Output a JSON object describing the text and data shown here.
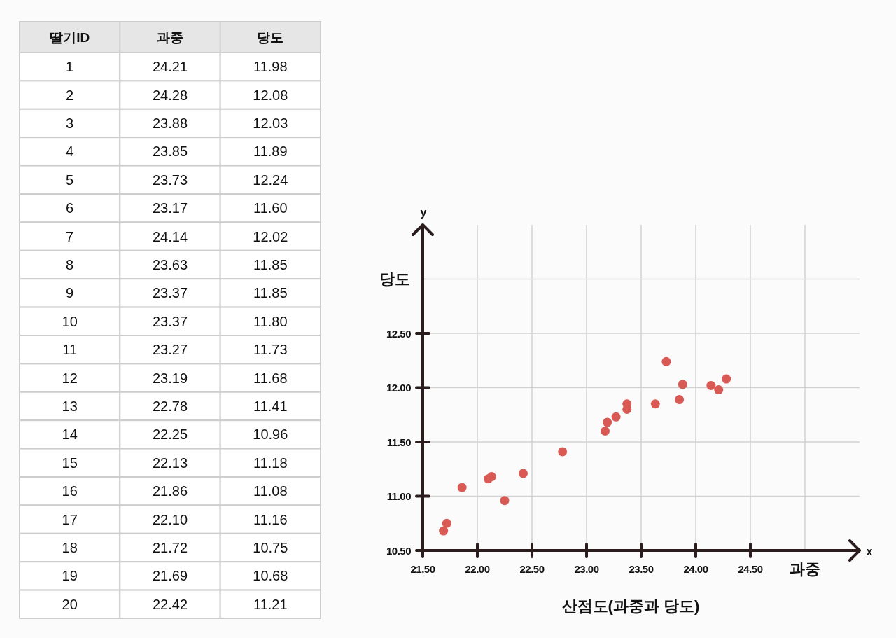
{
  "chart_data": [
    {
      "type": "heatmap",
      "ylabel": "딸기ID",
      "categories": [
        "과중",
        "당도"
      ],
      "y_categories": [
        "1",
        "2",
        "3",
        "4",
        "5",
        "6",
        "7",
        "8",
        "9",
        "10",
        "11",
        "12",
        "13",
        "14",
        "15",
        "16",
        "17",
        "18",
        "19",
        "20"
      ],
      "cells": [
        [
          24.21,
          11.98
        ],
        [
          24.28,
          12.08
        ],
        [
          23.88,
          12.03
        ],
        [
          23.85,
          11.89
        ],
        [
          23.73,
          12.24
        ],
        [
          23.17,
          11.6
        ],
        [
          24.14,
          12.02
        ],
        [
          23.63,
          11.85
        ],
        [
          23.37,
          11.85
        ],
        [
          23.37,
          11.8
        ],
        [
          23.27,
          11.73
        ],
        [
          23.19,
          11.68
        ],
        [
          22.78,
          11.41
        ],
        [
          22.25,
          10.96
        ],
        [
          22.13,
          11.18
        ],
        [
          21.86,
          11.08
        ],
        [
          22.1,
          11.16
        ],
        [
          21.72,
          10.75
        ],
        [
          21.69,
          10.68
        ],
        [
          22.42,
          11.21
        ]
      ],
      "cell_labels": [
        [
          "24.21",
          "11.98"
        ],
        [
          "24.28",
          "12.08"
        ],
        [
          "23.88",
          "12.03"
        ],
        [
          "23.85",
          "11.89"
        ],
        [
          "23.73",
          "12.24"
        ],
        [
          "23.17",
          "11.60"
        ],
        [
          "24.14",
          "12.02"
        ],
        [
          "23.63",
          "11.85"
        ],
        [
          "23.37",
          "11.85"
        ],
        [
          "23.37",
          "11.80"
        ],
        [
          "23.27",
          "11.73"
        ],
        [
          "23.19",
          "11.68"
        ],
        [
          "22.78",
          "11.41"
        ],
        [
          "22.25",
          "10.96"
        ],
        [
          "22.13",
          "11.18"
        ],
        [
          "21.86",
          "11.08"
        ],
        [
          "22.10",
          "11.16"
        ],
        [
          "21.72",
          "10.75"
        ],
        [
          "21.69",
          "10.68"
        ],
        [
          "22.42",
          "11.21"
        ]
      ],
      "data_labels": true
    },
    {
      "type": "scatter",
      "title": "산점도(과중과 당도)",
      "xlabel": "과중",
      "ylabel": "당도",
      "x": [
        24.21,
        24.28,
        23.88,
        23.85,
        23.73,
        23.17,
        24.14,
        23.63,
        23.37,
        23.37,
        23.27,
        23.19,
        22.78,
        22.25,
        22.13,
        21.86,
        22.1,
        21.72,
        21.69,
        22.42
      ],
      "values": [
        11.98,
        12.08,
        12.03,
        11.89,
        12.24,
        11.6,
        12.02,
        11.85,
        11.85,
        11.8,
        11.73,
        11.68,
        11.41,
        10.96,
        11.18,
        11.08,
        11.16,
        10.75,
        10.68,
        11.21
      ],
      "color": "#d95a55",
      "marker": "circle",
      "grid": true,
      "xlim": [
        21.5,
        25.5
      ],
      "ylim": [
        10.5,
        13.5
      ],
      "xticks": [
        {
          "value": 21.5,
          "label": "21.50"
        },
        {
          "value": 22,
          "label": "22.00"
        },
        {
          "value": 22.5,
          "label": "22.50"
        },
        {
          "value": 23,
          "label": "23.00"
        },
        {
          "value": 23.5,
          "label": "23.50"
        },
        {
          "value": 24,
          "label": "24.00"
        },
        {
          "value": 24.5,
          "label": "24.50"
        },
        {
          "value": 25,
          "label": null
        }
      ],
      "yticks": [
        {
          "value": 10.5,
          "label": "10.50"
        },
        {
          "value": 11,
          "label": "11.00"
        },
        {
          "value": 11.5,
          "label": "11.50"
        },
        {
          "value": 12,
          "label": "12.00"
        },
        {
          "value": 12.5,
          "label": "12.50"
        },
        {
          "value": 13,
          "label": null
        }
      ],
      "annotations": [
        "x",
        "y"
      ]
    }
  ]
}
